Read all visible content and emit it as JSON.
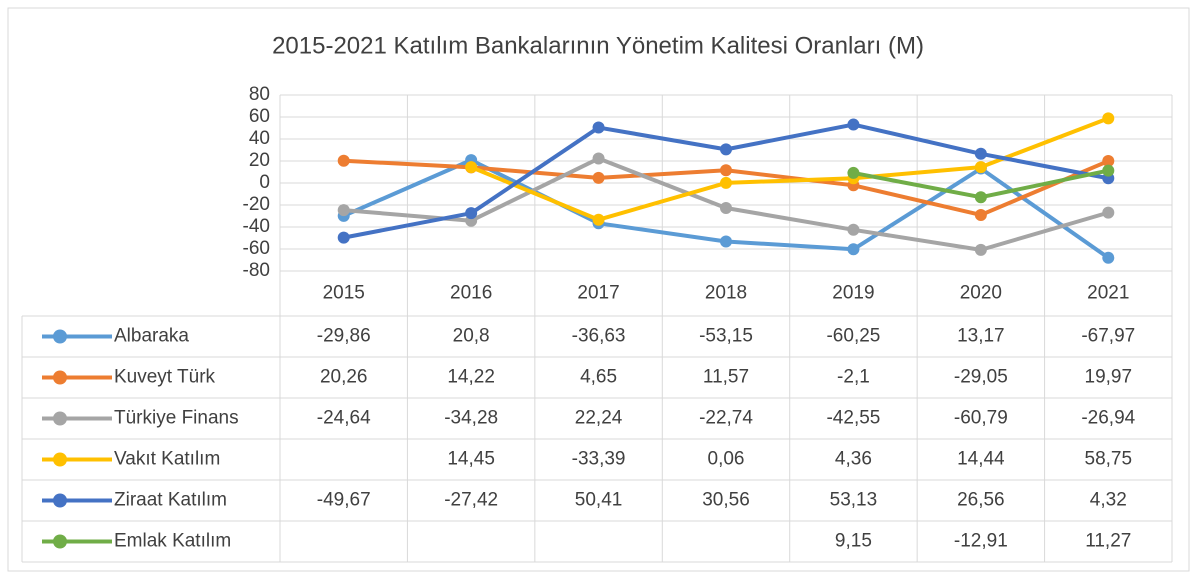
{
  "chart_data": {
    "type": "line",
    "title": "2015-2021 Katılım Bankalarının Yönetim Kalitesi Oranları (M)",
    "categories": [
      "2015",
      "2016",
      "2017",
      "2018",
      "2019",
      "2020",
      "2021"
    ],
    "series": [
      {
        "name": "Albaraka",
        "color": "#5B9BD5",
        "values": [
          -29.86,
          20.8,
          -36.63,
          -53.15,
          -60.25,
          13.17,
          -67.97
        ],
        "value_labels": [
          "-29,86",
          "20,8",
          "-36,63",
          "-53,15",
          "-60,25",
          "13,17",
          "-67,97"
        ]
      },
      {
        "name": "Kuveyt Türk",
        "color": "#ED7D31",
        "values": [
          20.26,
          14.22,
          4.65,
          11.57,
          -2.1,
          -29.05,
          19.97
        ],
        "value_labels": [
          "20,26",
          "14,22",
          "4,65",
          "11,57",
          "-2,1",
          "-29,05",
          "19,97"
        ]
      },
      {
        "name": "Türkiye Finans",
        "color": "#A5A5A5",
        "values": [
          -24.64,
          -34.28,
          22.24,
          -22.74,
          -42.55,
          -60.79,
          -26.94
        ],
        "value_labels": [
          "-24,64",
          "-34,28",
          "22,24",
          "-22,74",
          "-42,55",
          "-60,79",
          "-26,94"
        ]
      },
      {
        "name": "Vakıt Katılım",
        "color": "#FFC000",
        "values": [
          null,
          14.45,
          -33.39,
          0.06,
          4.36,
          14.44,
          58.75
        ],
        "value_labels": [
          null,
          "14,45",
          "-33,39",
          "0,06",
          "4,36",
          "14,44",
          "58,75"
        ]
      },
      {
        "name": "Ziraat Katılım",
        "color": "#4472C4",
        "values": [
          -49.67,
          -27.42,
          50.41,
          30.56,
          53.13,
          26.56,
          4.32
        ],
        "value_labels": [
          "-49,67",
          "-27,42",
          "50,41",
          "30,56",
          "53,13",
          "26,56",
          "4,32"
        ]
      },
      {
        "name": "Emlak Katılım",
        "color": "#70AD47",
        "values": [
          null,
          null,
          null,
          null,
          9.15,
          -12.91,
          11.27
        ],
        "value_labels": [
          null,
          null,
          null,
          null,
          "9,15",
          "-12,91",
          "11,27"
        ]
      }
    ],
    "ylim": [
      -80,
      80
    ],
    "yticks": [
      -80,
      -60,
      -40,
      -20,
      0,
      20,
      40,
      60,
      80
    ],
    "grid": true
  }
}
